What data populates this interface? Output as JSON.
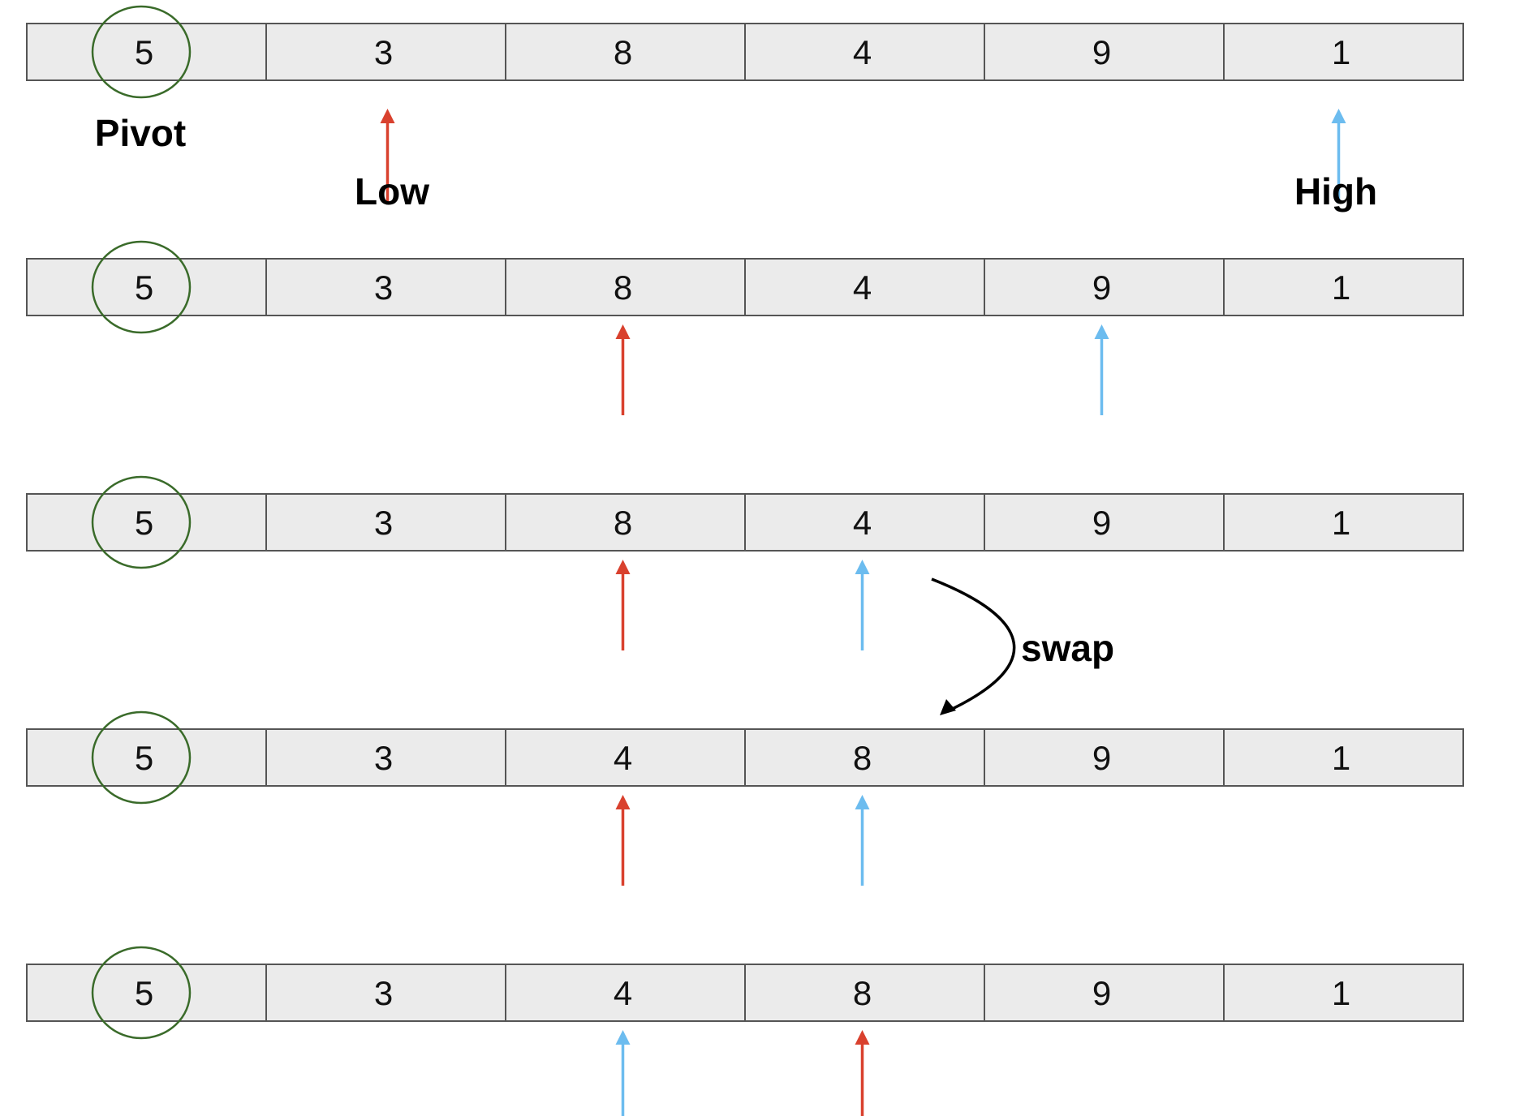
{
  "labels": {
    "pivot": "Pivot",
    "low": "Low",
    "high": "High",
    "swap": "swap"
  },
  "colors": {
    "cell_fill": "#ebebeb",
    "cell_border": "#555555",
    "pivot_circle": "#3a6b2a",
    "low_arrow": "#d9412e",
    "high_arrow": "#6cbcef",
    "swap_arrow": "#000000"
  },
  "rows": [
    {
      "values": [
        "5",
        "3",
        "8",
        "4",
        "9",
        "1"
      ],
      "pivot_index": 0,
      "pointers": [
        {
          "kind": "low",
          "index": 1
        },
        {
          "kind": "high",
          "index": 5
        }
      ]
    },
    {
      "values": [
        "5",
        "3",
        "8",
        "4",
        "9",
        "1"
      ],
      "pivot_index": 0,
      "pointers": [
        {
          "kind": "low",
          "index": 2
        },
        {
          "kind": "high",
          "index": 4
        }
      ]
    },
    {
      "values": [
        "5",
        "3",
        "8",
        "4",
        "9",
        "1"
      ],
      "pivot_index": 0,
      "pointers": [
        {
          "kind": "low",
          "index": 2
        },
        {
          "kind": "high",
          "index": 3
        }
      ]
    },
    {
      "values": [
        "5",
        "3",
        "4",
        "8",
        "9",
        "1"
      ],
      "pivot_index": 0,
      "pointers": [
        {
          "kind": "low",
          "index": 2
        },
        {
          "kind": "high",
          "index": 3
        }
      ]
    },
    {
      "values": [
        "5",
        "3",
        "4",
        "8",
        "9",
        "1"
      ],
      "pivot_index": 0,
      "pointers": [
        {
          "kind": "high",
          "index": 2
        },
        {
          "kind": "low",
          "index": 3
        }
      ]
    }
  ]
}
